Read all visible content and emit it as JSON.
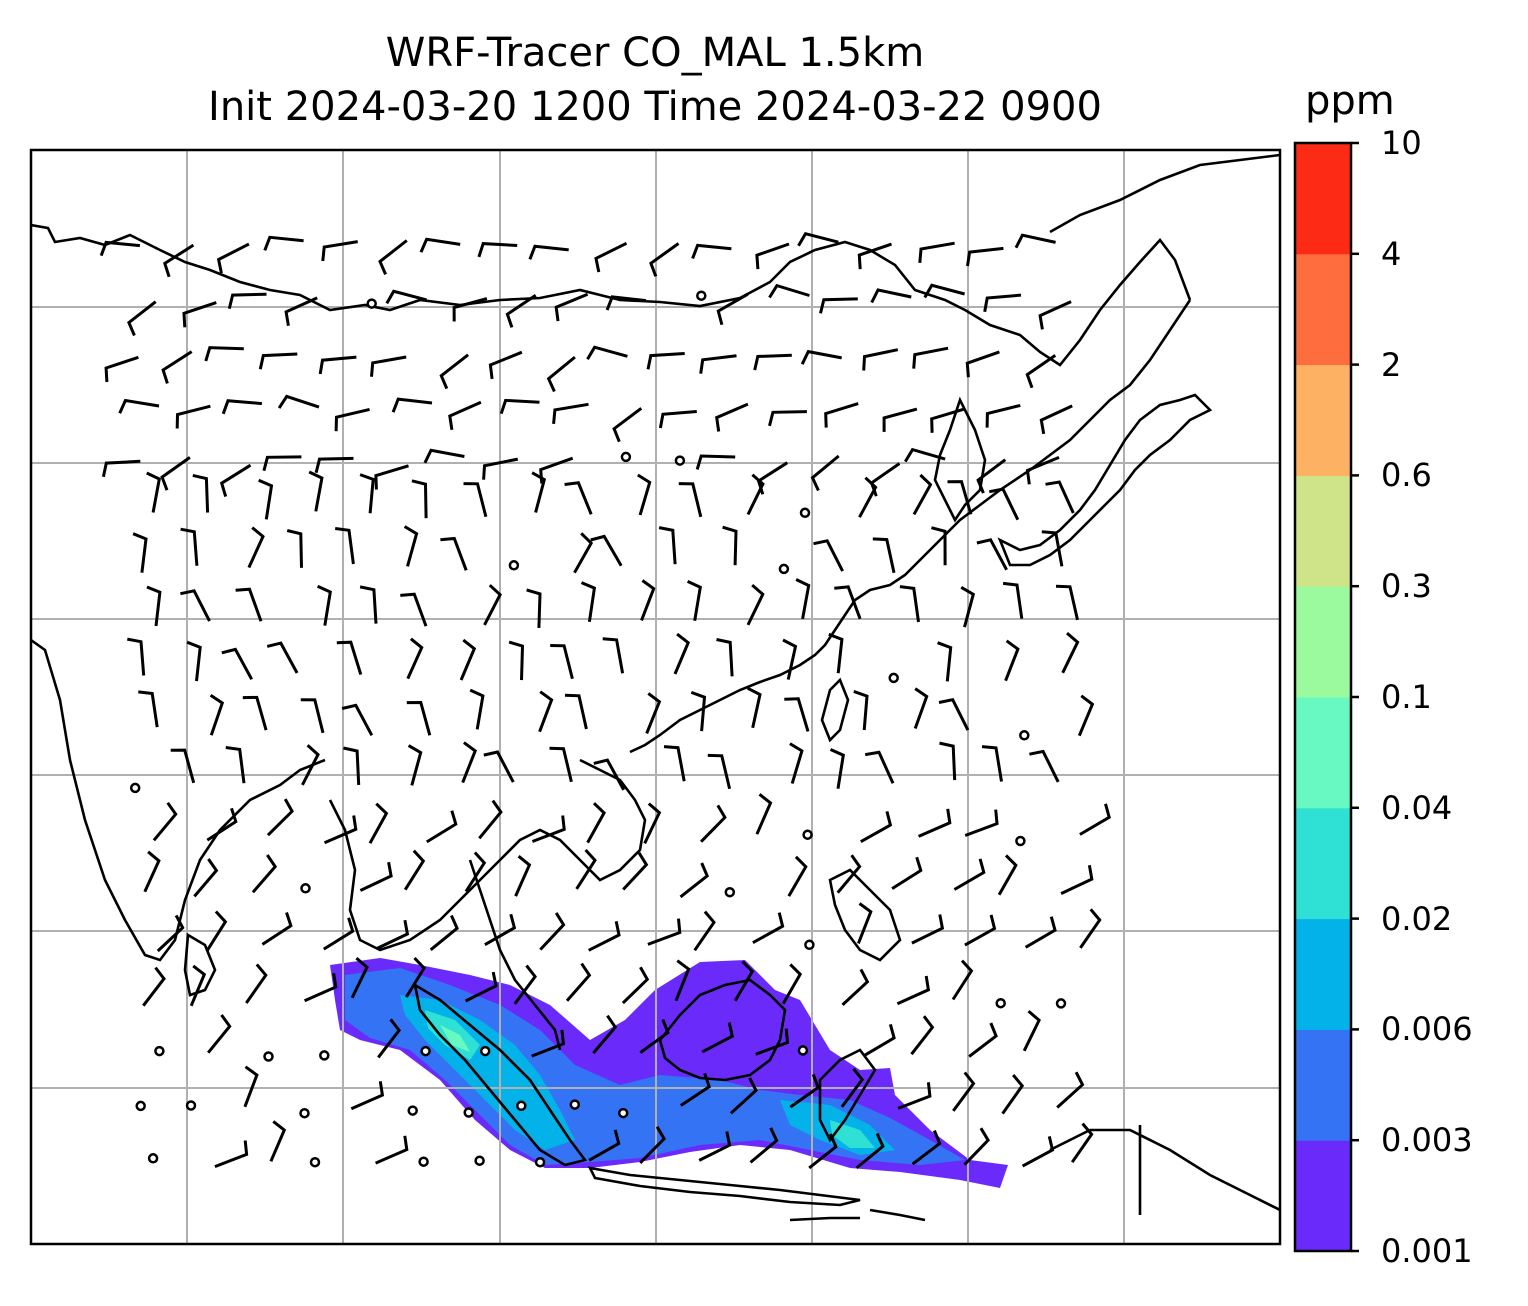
{
  "title_line1": "WRF-Tracer CO_MAL 1.5km",
  "title_line2": "Init 2024-03-20 1200 Time 2024-03-22 0900",
  "colorbar": {
    "unit": "ppm",
    "levels": [
      "0.001",
      "0.003",
      "0.006",
      "0.02",
      "0.04",
      "0.1",
      "0.3",
      "0.6",
      "2",
      "4",
      "10"
    ],
    "colors": [
      "#6a2bfa",
      "#3473f3",
      "#04b2ea",
      "#2fe0d4",
      "#68f9c2",
      "#9afa9d",
      "#cfe388",
      "#fdb163",
      "#fe6d3e",
      "#fd2b16"
    ]
  },
  "map": {
    "field": "CO_MAL tracer concentration with wind barbs",
    "gridline_color": "#b0b0b0",
    "coastline_color": "#000000"
  }
}
